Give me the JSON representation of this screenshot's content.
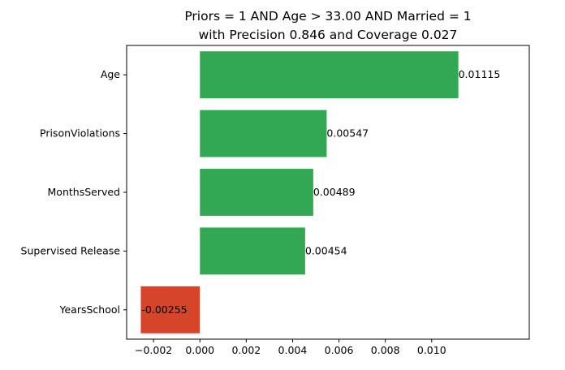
{
  "chart_data": {
    "type": "bar",
    "orientation": "horizontal",
    "title_lines": [
      "Priors = 1 AND Age > 33.00 AND Married = 1",
      "with Precision 0.846 and Coverage 0.027"
    ],
    "categories": [
      "Age",
      "PrisonViolations",
      "MonthsServed",
      "Supervised Release",
      "YearsSchool"
    ],
    "values": [
      0.01115,
      0.00547,
      0.00489,
      0.00454,
      -0.00255
    ],
    "value_labels": [
      "0.01115",
      "0.00547",
      "0.00489",
      "0.00454",
      "-0.00255"
    ],
    "x_ticks": [
      -0.002,
      0.0,
      0.002,
      0.004,
      0.006,
      0.008,
      0.01
    ],
    "x_tick_labels": [
      "−0.002",
      "0.000",
      "0.002",
      "0.004",
      "0.006",
      "0.008",
      "0.010"
    ],
    "xlim": [
      -0.00316,
      0.01421
    ],
    "xlabel": "",
    "ylabel": "",
    "grid": false,
    "colors": {
      "positive": "#33a852",
      "negative": "#d4452a"
    }
  }
}
